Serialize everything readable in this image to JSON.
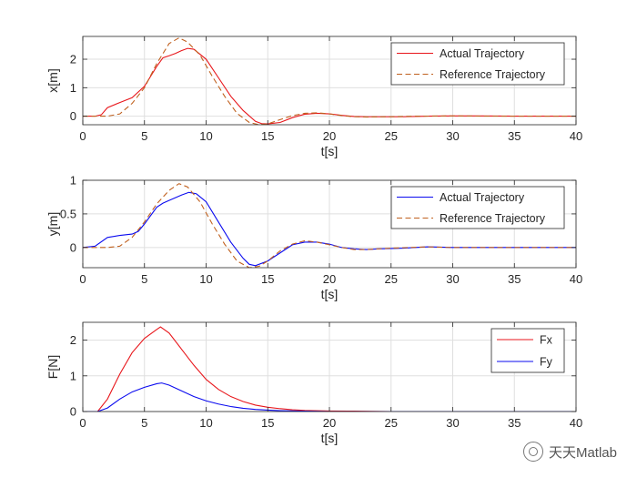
{
  "chart_data": [
    {
      "type": "line",
      "xlabel": "t[s]",
      "ylabel": "x[m]",
      "xlim": [
        0,
        40
      ],
      "ylim": [
        -0.3,
        2.8
      ],
      "xticks": [
        0,
        5,
        10,
        15,
        20,
        25,
        30,
        35,
        40
      ],
      "yticks": [
        0,
        1,
        2
      ],
      "grid": true,
      "legend_position": "top-right",
      "series": [
        {
          "name": "Actual Trajectory",
          "color": "#e8161b",
          "dash": "solid",
          "points": [
            [
              0,
              0
            ],
            [
              1,
              0
            ],
            [
              1.5,
              0.05
            ],
            [
              2,
              0.3
            ],
            [
              3,
              0.48
            ],
            [
              4,
              0.65
            ],
            [
              5,
              1.05
            ],
            [
              6,
              1.75
            ],
            [
              6.5,
              2.05
            ],
            [
              7,
              2.12
            ],
            [
              7.5,
              2.2
            ],
            [
              8,
              2.3
            ],
            [
              8.5,
              2.38
            ],
            [
              9,
              2.35
            ],
            [
              10,
              2.0
            ],
            [
              11,
              1.35
            ],
            [
              12,
              0.7
            ],
            [
              13,
              0.2
            ],
            [
              14,
              -0.18
            ],
            [
              14.5,
              -0.26
            ],
            [
              15,
              -0.27
            ],
            [
              16,
              -0.22
            ],
            [
              17,
              -0.05
            ],
            [
              18,
              0.07
            ],
            [
              19,
              0.1
            ],
            [
              20,
              0.08
            ],
            [
              21,
              0.03
            ],
            [
              22,
              -0.01
            ],
            [
              23,
              -0.02
            ],
            [
              24,
              -0.02
            ],
            [
              26,
              -0.02
            ],
            [
              28,
              0.0
            ],
            [
              30,
              0.01
            ],
            [
              32,
              0.01
            ],
            [
              35,
              0.0
            ],
            [
              40,
              0.0
            ]
          ]
        },
        {
          "name": "Reference Trajectory",
          "color": "#c0601e",
          "dash": "dashed",
          "points": [
            [
              0,
              0
            ],
            [
              2,
              0
            ],
            [
              3,
              0.08
            ],
            [
              4,
              0.45
            ],
            [
              5,
              1.0
            ],
            [
              6,
              1.85
            ],
            [
              7,
              2.55
            ],
            [
              7.8,
              2.75
            ],
            [
              8.5,
              2.6
            ],
            [
              9.5,
              2.15
            ],
            [
              10.5,
              1.4
            ],
            [
              11.5,
              0.7
            ],
            [
              12.5,
              0.1
            ],
            [
              13.5,
              -0.22
            ],
            [
              14.3,
              -0.3
            ],
            [
              15,
              -0.27
            ],
            [
              16,
              -0.12
            ],
            [
              17,
              0.02
            ],
            [
              18,
              0.1
            ],
            [
              19,
              0.12
            ],
            [
              20,
              0.08
            ],
            [
              21,
              0.02
            ],
            [
              22,
              -0.02
            ],
            [
              23,
              -0.03
            ],
            [
              25,
              -0.02
            ],
            [
              27,
              0.0
            ],
            [
              30,
              0.01
            ],
            [
              33,
              0.0
            ],
            [
              40,
              0.0
            ]
          ]
        }
      ]
    },
    {
      "type": "line",
      "xlabel": "t[s]",
      "ylabel": "y[m]",
      "xlim": [
        0,
        40
      ],
      "ylim": [
        -0.3,
        1.0
      ],
      "xticks": [
        0,
        5,
        10,
        15,
        20,
        25,
        30,
        35,
        40
      ],
      "yticks": [
        0,
        0.5,
        1
      ],
      "grid": true,
      "legend_position": "top-right",
      "series": [
        {
          "name": "Actual Trajectory",
          "color": "#0a0aef",
          "dash": "solid",
          "points": [
            [
              0,
              0
            ],
            [
              1,
              0.02
            ],
            [
              2,
              0.15
            ],
            [
              3,
              0.18
            ],
            [
              4,
              0.2
            ],
            [
              4.5,
              0.24
            ],
            [
              5,
              0.35
            ],
            [
              6,
              0.6
            ],
            [
              6.5,
              0.66
            ],
            [
              7,
              0.7
            ],
            [
              8,
              0.78
            ],
            [
              8.6,
              0.82
            ],
            [
              9.2,
              0.8
            ],
            [
              10,
              0.68
            ],
            [
              11,
              0.38
            ],
            [
              12,
              0.08
            ],
            [
              13,
              -0.16
            ],
            [
              13.5,
              -0.25
            ],
            [
              14,
              -0.27
            ],
            [
              15,
              -0.2
            ],
            [
              16,
              -0.08
            ],
            [
              17,
              0.04
            ],
            [
              18,
              0.08
            ],
            [
              19,
              0.08
            ],
            [
              20,
              0.05
            ],
            [
              21,
              0.0
            ],
            [
              22,
              -0.02
            ],
            [
              23,
              -0.03
            ],
            [
              24,
              -0.02
            ],
            [
              26,
              -0.01
            ],
            [
              28,
              0.01
            ],
            [
              30,
              0.0
            ],
            [
              33,
              0.0
            ],
            [
              40,
              0.0
            ]
          ]
        },
        {
          "name": "Reference Trajectory",
          "color": "#c0601e",
          "dash": "dashed",
          "points": [
            [
              0,
              0
            ],
            [
              2,
              0
            ],
            [
              3,
              0.02
            ],
            [
              4,
              0.15
            ],
            [
              5,
              0.38
            ],
            [
              6,
              0.65
            ],
            [
              7,
              0.85
            ],
            [
              7.8,
              0.95
            ],
            [
              8.5,
              0.9
            ],
            [
              9.5,
              0.68
            ],
            [
              10.5,
              0.35
            ],
            [
              11.5,
              0.05
            ],
            [
              12.5,
              -0.2
            ],
            [
              13.5,
              -0.3
            ],
            [
              14.3,
              -0.28
            ],
            [
              15,
              -0.2
            ],
            [
              16,
              -0.05
            ],
            [
              17,
              0.05
            ],
            [
              18,
              0.1
            ],
            [
              19,
              0.08
            ],
            [
              20,
              0.04
            ],
            [
              21,
              0.0
            ],
            [
              22,
              -0.03
            ],
            [
              23,
              -0.03
            ],
            [
              25,
              -0.01
            ],
            [
              28,
              0.01
            ],
            [
              30,
              0.0
            ],
            [
              40,
              0.0
            ]
          ]
        }
      ]
    },
    {
      "type": "line",
      "xlabel": "t[s]",
      "ylabel": "F[N]",
      "xlim": [
        0,
        40
      ],
      "ylim": [
        0,
        2.5
      ],
      "xticks": [
        0,
        5,
        10,
        15,
        20,
        25,
        30,
        35,
        40
      ],
      "yticks": [
        0,
        1,
        2
      ],
      "grid": true,
      "legend_position": "top-right",
      "series": [
        {
          "name": "Fx",
          "color": "#e8161b",
          "dash": "solid",
          "points": [
            [
              0,
              0
            ],
            [
              1.2,
              0
            ],
            [
              2,
              0.35
            ],
            [
              3,
              1.05
            ],
            [
              4,
              1.65
            ],
            [
              5,
              2.05
            ],
            [
              6,
              2.3
            ],
            [
              6.3,
              2.37
            ],
            [
              7,
              2.2
            ],
            [
              8,
              1.75
            ],
            [
              9,
              1.3
            ],
            [
              10,
              0.9
            ],
            [
              11,
              0.62
            ],
            [
              12,
              0.42
            ],
            [
              13,
              0.28
            ],
            [
              14,
              0.18
            ],
            [
              15,
              0.12
            ],
            [
              16,
              0.08
            ],
            [
              17,
              0.05
            ],
            [
              18,
              0.03
            ],
            [
              20,
              0.015
            ],
            [
              22,
              0.01
            ],
            [
              25,
              0.0
            ],
            [
              40,
              0.0
            ]
          ]
        },
        {
          "name": "Fy",
          "color": "#0a0aef",
          "dash": "solid",
          "points": [
            [
              0,
              0
            ],
            [
              1.2,
              0
            ],
            [
              2,
              0.1
            ],
            [
              3,
              0.35
            ],
            [
              4,
              0.55
            ],
            [
              5,
              0.68
            ],
            [
              6,
              0.78
            ],
            [
              6.4,
              0.8
            ],
            [
              7,
              0.74
            ],
            [
              8,
              0.58
            ],
            [
              9,
              0.42
            ],
            [
              10,
              0.3
            ],
            [
              11,
              0.21
            ],
            [
              12,
              0.14
            ],
            [
              13,
              0.09
            ],
            [
              14,
              0.06
            ],
            [
              15,
              0.04
            ],
            [
              16,
              0.025
            ],
            [
              18,
              0.01
            ],
            [
              20,
              0.0
            ],
            [
              40,
              0.0
            ]
          ]
        }
      ]
    }
  ],
  "watermark": {
    "text": "天天Matlab",
    "icon": "wechat-icon"
  }
}
